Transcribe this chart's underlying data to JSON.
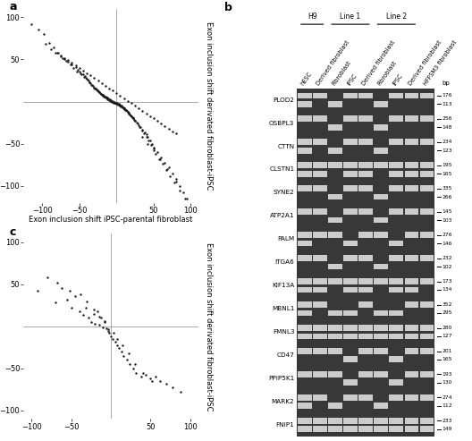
{
  "panel_a_x": [
    -95,
    -88,
    -82,
    -75,
    -70,
    -65,
    -60,
    -55,
    -52,
    -50,
    -48,
    -45,
    -43,
    -41,
    -40,
    -38,
    -36,
    -35,
    -33,
    -32,
    -30,
    -29,
    -28,
    -27,
    -26,
    -25,
    -24,
    -23,
    -22,
    -21,
    -20,
    -19,
    -18,
    -17,
    -16,
    -15,
    -14,
    -13,
    -12,
    -11,
    -10,
    -9,
    -8,
    -7,
    -6,
    -5,
    -4,
    -3,
    -2,
    -1,
    0,
    1,
    2,
    3,
    4,
    5,
    6,
    7,
    8,
    9,
    10,
    11,
    12,
    13,
    14,
    15,
    16,
    17,
    18,
    19,
    20,
    21,
    22,
    23,
    24,
    25,
    27,
    30,
    32,
    35,
    38,
    40,
    42,
    45,
    48,
    50,
    55,
    60,
    65,
    70,
    75,
    80,
    85,
    90,
    95,
    -80,
    -70,
    -60,
    -50,
    -40,
    -30,
    -20,
    -10,
    0,
    10,
    20,
    30,
    40,
    50,
    60,
    70,
    80,
    -75,
    -65,
    -55,
    -45,
    -35,
    -25,
    -15,
    -5,
    5,
    15,
    25,
    35,
    45,
    55,
    65,
    75,
    -90,
    -85,
    -78,
    -72,
    -68,
    -62,
    -58,
    -53,
    -47,
    -44,
    -39,
    -37,
    -34,
    -31,
    -28,
    -26,
    -23,
    -21,
    -19,
    -17,
    -15,
    -13,
    -11,
    -9,
    -7,
    -5,
    -3,
    -1,
    1,
    3,
    5,
    7,
    9,
    11,
    13,
    15,
    17,
    19,
    21,
    23,
    25,
    28,
    31,
    34,
    37,
    40,
    43,
    46,
    50,
    53,
    57,
    62,
    67,
    72,
    78,
    85,
    92,
    -105,
    -98,
    -115,
    35,
    42,
    50,
    58,
    68,
    80
  ],
  "panel_a_y": [
    68,
    62,
    58,
    54,
    50,
    47,
    44,
    41,
    38,
    36,
    34,
    32,
    30,
    28,
    27,
    25,
    23,
    22,
    20,
    19,
    17,
    16,
    15,
    14,
    13,
    12,
    12,
    11,
    10,
    9,
    8,
    8,
    7,
    6,
    6,
    5,
    5,
    4,
    3,
    3,
    2,
    2,
    1,
    1,
    0,
    0,
    -1,
    -1,
    -2,
    -2,
    -3,
    -3,
    -4,
    -4,
    -5,
    -5,
    -6,
    -6,
    -7,
    -8,
    -8,
    -9,
    -10,
    -10,
    -11,
    -12,
    -13,
    -14,
    -15,
    -16,
    -17,
    -18,
    -19,
    -20,
    -22,
    -23,
    -25,
    -28,
    -30,
    -33,
    -36,
    -39,
    -42,
    -46,
    -50,
    -54,
    -60,
    -66,
    -72,
    -78,
    -85,
    -92,
    -100,
    -108,
    -115,
    58,
    52,
    46,
    40,
    34,
    28,
    22,
    16,
    10,
    4,
    -2,
    -8,
    -14,
    -20,
    -26,
    -32,
    -38,
    55,
    49,
    43,
    37,
    31,
    25,
    19,
    13,
    7,
    1,
    -5,
    -11,
    -17,
    -23,
    -29,
    -35,
    70,
    64,
    58,
    52,
    48,
    44,
    40,
    36,
    32,
    29,
    26,
    23,
    20,
    17,
    15,
    13,
    11,
    9,
    8,
    7,
    6,
    5,
    4,
    3,
    2,
    1,
    0,
    -1,
    -2,
    -3,
    -4,
    -5,
    -7,
    -8,
    -10,
    -12,
    -14,
    -16,
    -18,
    -20,
    -23,
    -26,
    -30,
    -34,
    -38,
    -42,
    -46,
    -51,
    -56,
    -62,
    -68,
    -74,
    -81,
    -88,
    -96,
    -105,
    -115,
    85,
    80,
    92,
    -42,
    -50,
    -58,
    -68,
    -80,
    -95
  ],
  "panel_c_x": [
    -92,
    -80,
    -70,
    -62,
    -55,
    -50,
    -45,
    -40,
    -35,
    -32,
    -28,
    -25,
    -22,
    -20,
    -17,
    -15,
    -12,
    -10,
    -8,
    -6,
    -4,
    -2,
    0,
    2,
    5,
    8,
    10,
    13,
    16,
    20,
    24,
    28,
    32,
    38,
    44,
    50,
    56,
    62,
    70,
    78,
    88,
    -68,
    -52,
    -38,
    -30,
    -22,
    -15,
    -8,
    -3,
    3,
    8,
    15,
    22,
    30,
    40,
    52
  ],
  "panel_c_y": [
    42,
    58,
    28,
    45,
    32,
    22,
    36,
    18,
    14,
    22,
    10,
    5,
    15,
    3,
    18,
    2,
    10,
    -1,
    6,
    -2,
    -5,
    -8,
    -12,
    -15,
    -18,
    -22,
    -26,
    -30,
    -35,
    -40,
    -45,
    -50,
    -55,
    -60,
    -58,
    -62,
    -60,
    -65,
    -68,
    -72,
    -78,
    52,
    42,
    38,
    30,
    20,
    12,
    5,
    -3,
    -8,
    -15,
    -22,
    -32,
    -45,
    -55,
    -65
  ],
  "scatter_color": "#1a1a1a",
  "scatter_size": 3,
  "axis_color": "#888888",
  "label_fontsize": 6.0,
  "tick_fontsize": 6.0,
  "panel_label_fontsize": 9,
  "background_color": "#ffffff",
  "gel_genes": [
    "PLOD2",
    "OSBPL3",
    "CTTN",
    "CLSTN1",
    "SYNE2",
    "ATP2A1",
    "PALM",
    "ITGA6",
    "KIF13A",
    "MBNL1",
    "FMNL3",
    "CD47",
    "PPIP5K1",
    "MARK2",
    "FNIP1"
  ],
  "gel_bp_top": [
    176,
    256,
    234,
    195,
    335,
    145,
    276,
    232,
    173,
    352,
    280,
    201,
    193,
    274,
    233
  ],
  "gel_bp_bot": [
    113,
    148,
    123,
    165,
    266,
    103,
    146,
    102,
    134,
    295,
    127,
    165,
    130,
    112,
    149
  ],
  "col_labels": [
    "hESC",
    "Derived fibroblast",
    "Fibroblast",
    "iPSC",
    "Derived fibroblast",
    "Fibroblast",
    "iPSC",
    "Derived fibroblast",
    "HFFSM3 fibroblast"
  ],
  "n_cols": 9,
  "gel_bg": "#383838",
  "band_bright": "#cccccc",
  "band_absent": "#383838",
  "band_patterns_top": [
    [
      2,
      2,
      0,
      2,
      2,
      0,
      2,
      2,
      2
    ],
    [
      2,
      2,
      0,
      2,
      2,
      0,
      2,
      2,
      2
    ],
    [
      2,
      2,
      0,
      2,
      2,
      0,
      2,
      2,
      2
    ],
    [
      2,
      2,
      2,
      2,
      2,
      2,
      2,
      2,
      2
    ],
    [
      2,
      2,
      0,
      2,
      2,
      0,
      2,
      2,
      2
    ],
    [
      2,
      2,
      0,
      2,
      2,
      0,
      2,
      2,
      2
    ],
    [
      2,
      2,
      2,
      0,
      2,
      2,
      0,
      2,
      2
    ],
    [
      2,
      2,
      0,
      2,
      2,
      0,
      2,
      2,
      2
    ],
    [
      2,
      2,
      2,
      2,
      2,
      2,
      2,
      2,
      2
    ],
    [
      2,
      2,
      0,
      0,
      2,
      0,
      0,
      2,
      2
    ],
    [
      2,
      2,
      2,
      2,
      2,
      2,
      2,
      2,
      2
    ],
    [
      2,
      2,
      2,
      0,
      2,
      2,
      0,
      2,
      2
    ],
    [
      2,
      2,
      2,
      0,
      2,
      2,
      0,
      2,
      2
    ],
    [
      2,
      2,
      0,
      2,
      2,
      0,
      2,
      2,
      2
    ],
    [
      2,
      2,
      2,
      2,
      2,
      2,
      2,
      2,
      2
    ]
  ],
  "band_patterns_bot": [
    [
      2,
      0,
      2,
      0,
      0,
      2,
      0,
      0,
      0
    ],
    [
      0,
      0,
      2,
      0,
      0,
      2,
      0,
      0,
      0
    ],
    [
      2,
      0,
      2,
      0,
      0,
      2,
      0,
      0,
      0
    ],
    [
      2,
      2,
      0,
      2,
      2,
      0,
      2,
      2,
      2
    ],
    [
      0,
      0,
      2,
      0,
      0,
      2,
      0,
      0,
      0
    ],
    [
      0,
      0,
      2,
      0,
      0,
      2,
      0,
      0,
      0
    ],
    [
      2,
      0,
      0,
      2,
      0,
      0,
      2,
      0,
      0
    ],
    [
      0,
      0,
      2,
      0,
      0,
      2,
      0,
      0,
      0
    ],
    [
      2,
      2,
      0,
      2,
      2,
      0,
      2,
      2,
      0
    ],
    [
      2,
      0,
      2,
      2,
      0,
      2,
      2,
      0,
      0
    ],
    [
      2,
      2,
      2,
      2,
      2,
      2,
      2,
      2,
      2
    ],
    [
      0,
      0,
      0,
      2,
      0,
      0,
      2,
      0,
      0
    ],
    [
      0,
      0,
      0,
      2,
      0,
      0,
      2,
      0,
      0
    ],
    [
      2,
      0,
      2,
      0,
      0,
      2,
      0,
      0,
      0
    ],
    [
      2,
      2,
      2,
      2,
      2,
      2,
      2,
      2,
      2
    ]
  ]
}
